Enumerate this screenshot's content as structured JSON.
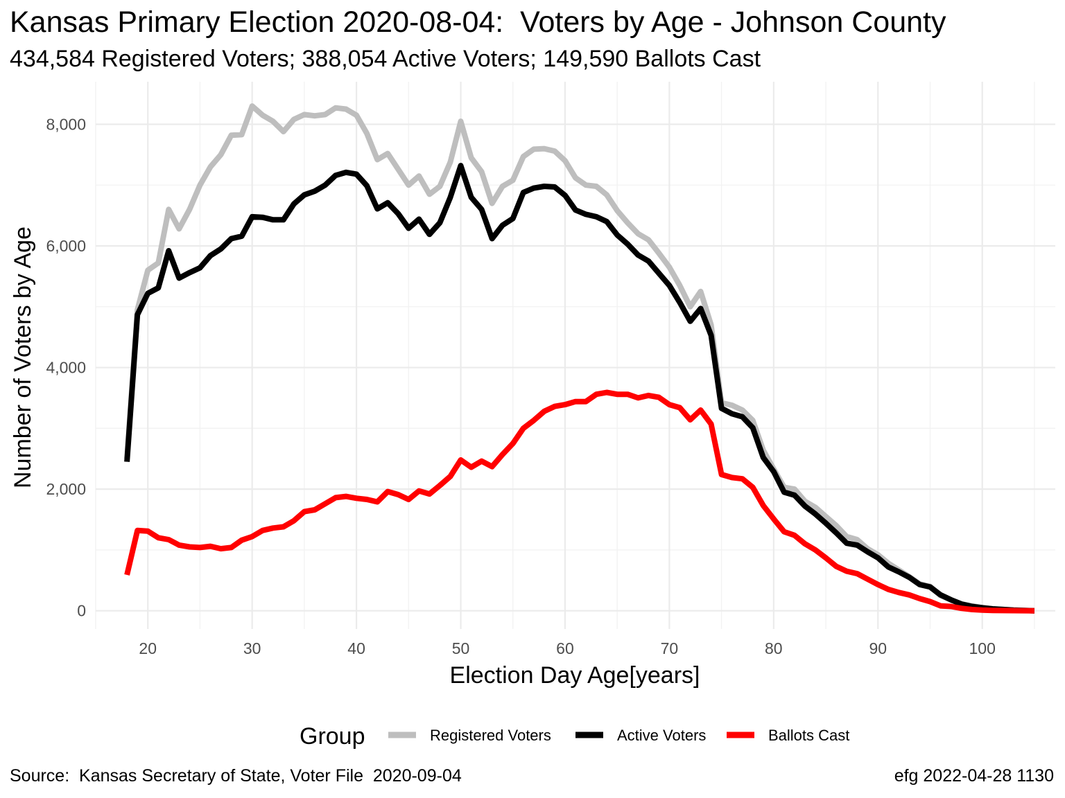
{
  "title": "Kansas Primary Election 2020-08-04:  Voters by Age - Johnson County",
  "subtitle": "434,584 Registered Voters; 388,054 Active Voters; 149,590 Ballots Cast",
  "caption_left": "Source:  Kansas Secretary of State, Voter File  2020-09-04",
  "caption_right": "efg 2022-04-28 1130",
  "chart_data": {
    "type": "line",
    "xlabel": "Election Day Age[years]",
    "ylabel": "Number of Voters by Age",
    "xlim": [
      15,
      107
    ],
    "ylim": [
      -300,
      8700
    ],
    "x_ticks": [
      20,
      30,
      40,
      50,
      60,
      70,
      80,
      90,
      100
    ],
    "y_ticks": [
      0,
      2000,
      4000,
      6000,
      8000
    ],
    "y_tick_labels": [
      "0",
      "2,000",
      "4,000",
      "6,000",
      "8,000"
    ],
    "grid": true,
    "legend_title": "Group",
    "legend_position": "bottom",
    "x": [
      18,
      19,
      20,
      21,
      22,
      23,
      24,
      25,
      26,
      27,
      28,
      29,
      30,
      31,
      32,
      33,
      34,
      35,
      36,
      37,
      38,
      39,
      40,
      41,
      42,
      43,
      44,
      45,
      46,
      47,
      48,
      49,
      50,
      51,
      52,
      53,
      54,
      55,
      56,
      57,
      58,
      59,
      60,
      61,
      62,
      63,
      64,
      65,
      66,
      67,
      68,
      69,
      70,
      71,
      72,
      73,
      74,
      75,
      76,
      77,
      78,
      79,
      80,
      81,
      82,
      83,
      84,
      85,
      86,
      87,
      88,
      89,
      90,
      91,
      92,
      93,
      94,
      95,
      96,
      97,
      98,
      99,
      100,
      101,
      102,
      103,
      104,
      105
    ],
    "series": [
      {
        "name": "Registered Voters",
        "color": "#bebebe",
        "values": [
          2500,
          4950,
          5600,
          5720,
          6600,
          6280,
          6600,
          7000,
          7300,
          7500,
          7820,
          7830,
          8300,
          8150,
          8050,
          7880,
          8080,
          8160,
          8140,
          8160,
          8270,
          8250,
          8150,
          7850,
          7420,
          7520,
          7260,
          7000,
          7150,
          6850,
          6980,
          7380,
          8050,
          7450,
          7220,
          6700,
          6980,
          7080,
          7470,
          7590,
          7600,
          7560,
          7400,
          7120,
          7000,
          6980,
          6840,
          6580,
          6380,
          6200,
          6100,
          5880,
          5650,
          5350,
          5000,
          5250,
          4700,
          3420,
          3380,
          3300,
          3130,
          2640,
          2330,
          2030,
          2000,
          1800,
          1700,
          1550,
          1400,
          1220,
          1170,
          1020,
          920,
          780,
          670,
          560,
          440,
          400,
          250,
          180,
          110,
          80,
          50,
          30,
          20,
          10,
          5,
          0
        ]
      },
      {
        "name": "Active Voters",
        "color": "#000000",
        "values": [
          2450,
          4870,
          5220,
          5310,
          5920,
          5470,
          5560,
          5640,
          5840,
          5950,
          6120,
          6160,
          6480,
          6470,
          6430,
          6430,
          6690,
          6840,
          6900,
          7000,
          7160,
          7210,
          7180,
          6990,
          6610,
          6710,
          6530,
          6290,
          6440,
          6190,
          6380,
          6800,
          7320,
          6800,
          6600,
          6120,
          6340,
          6450,
          6880,
          6950,
          6980,
          6970,
          6830,
          6590,
          6520,
          6480,
          6400,
          6180,
          6030,
          5850,
          5750,
          5550,
          5350,
          5070,
          4760,
          4970,
          4530,
          3330,
          3240,
          3190,
          3010,
          2520,
          2290,
          1950,
          1900,
          1720,
          1590,
          1440,
          1280,
          1110,
          1080,
          970,
          870,
          720,
          640,
          550,
          430,
          390,
          260,
          180,
          110,
          70,
          50,
          30,
          20,
          10,
          5,
          0
        ]
      },
      {
        "name": "Ballots Cast",
        "color": "#ff0000",
        "values": [
          590,
          1320,
          1310,
          1200,
          1170,
          1080,
          1050,
          1040,
          1060,
          1020,
          1040,
          1160,
          1220,
          1320,
          1360,
          1380,
          1480,
          1630,
          1660,
          1760,
          1860,
          1880,
          1850,
          1830,
          1790,
          1960,
          1910,
          1830,
          1970,
          1920,
          2060,
          2210,
          2480,
          2360,
          2460,
          2370,
          2570,
          2750,
          3000,
          3130,
          3280,
          3360,
          3390,
          3440,
          3440,
          3560,
          3590,
          3560,
          3560,
          3500,
          3540,
          3510,
          3390,
          3340,
          3140,
          3300,
          3070,
          2240,
          2190,
          2170,
          2030,
          1730,
          1510,
          1300,
          1240,
          1100,
          1000,
          870,
          730,
          650,
          610,
          520,
          430,
          350,
          300,
          260,
          200,
          150,
          80,
          70,
          40,
          20,
          10,
          5,
          3,
          2,
          1,
          0
        ]
      }
    ]
  }
}
